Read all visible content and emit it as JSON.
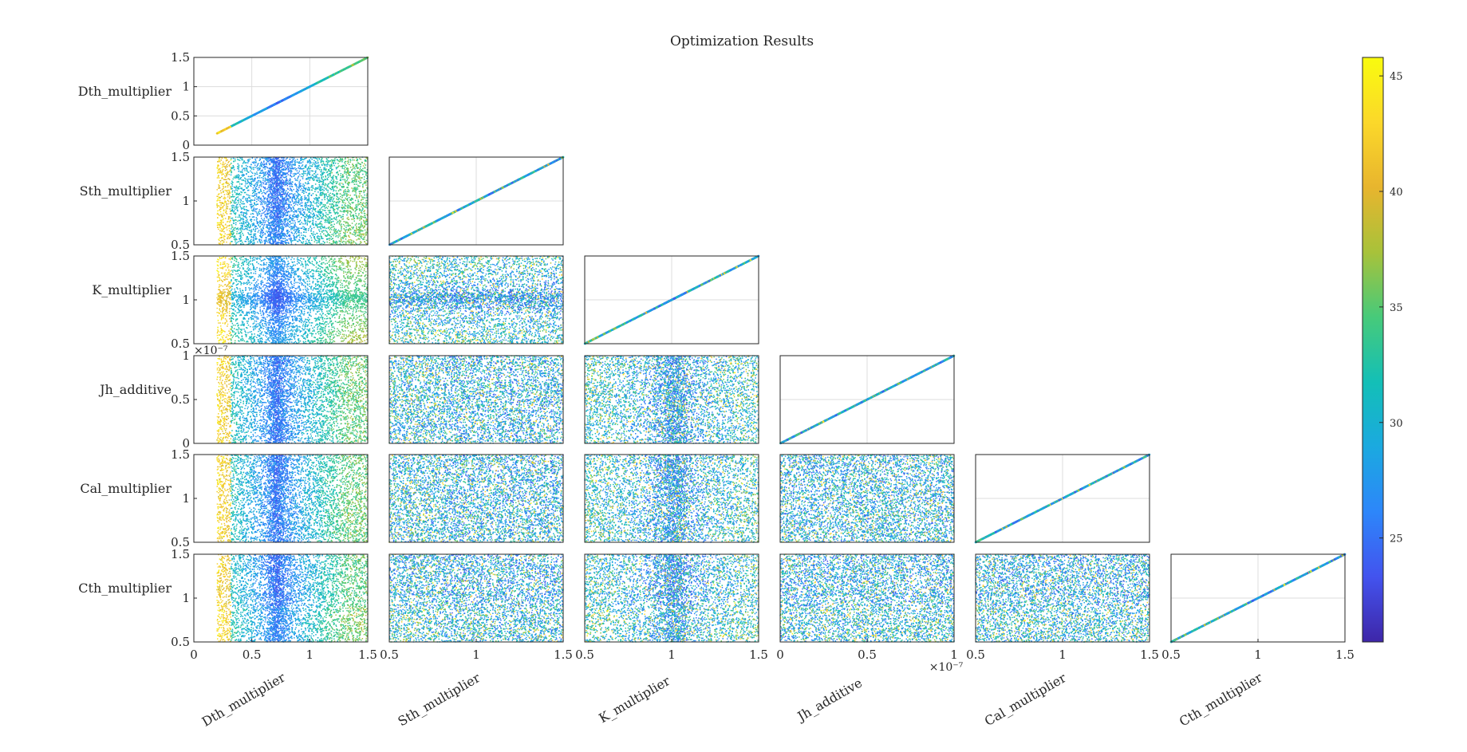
{
  "chart_data": {
    "type": "scatter",
    "layout": "lower-triangular scatter matrix",
    "title": "Optimization Results",
    "variables": [
      {
        "name": "Dth_multiplier",
        "range": [
          0,
          1.5
        ],
        "ticks": [
          0,
          0.5,
          1,
          1.5
        ],
        "tick_labels": [
          "0",
          "0.5",
          "1",
          "1.5"
        ],
        "exponent_label": ""
      },
      {
        "name": "Sth_multiplier",
        "range": [
          0.5,
          1.5
        ],
        "ticks": [
          0.5,
          1,
          1.5
        ],
        "tick_labels": [
          "0.5",
          "1",
          "1.5"
        ],
        "exponent_label": ""
      },
      {
        "name": "K_multiplier",
        "range": [
          0.5,
          1.5
        ],
        "ticks": [
          0.5,
          1,
          1.5
        ],
        "tick_labels": [
          "0.5",
          "1",
          "1.5"
        ],
        "exponent_label": ""
      },
      {
        "name": "Jh_additive",
        "range": [
          0,
          1
        ],
        "ticks": [
          0,
          0.5,
          1
        ],
        "tick_labels": [
          "0",
          "0.5",
          "1"
        ],
        "exponent_label": "×10⁻⁷"
      },
      {
        "name": "Cal_multiplier",
        "range": [
          0.5,
          1.5
        ],
        "ticks": [
          0.5,
          1,
          1.5
        ],
        "tick_labels": [
          "0.5",
          "1",
          "1.5"
        ],
        "exponent_label": ""
      },
      {
        "name": "Cth_multiplier",
        "range": [
          0.5,
          1.5
        ],
        "ticks": [
          0.5,
          1,
          1.5
        ],
        "tick_labels": [
          "0.5",
          "1",
          "1.5"
        ],
        "exponent_label": ""
      }
    ],
    "sample_ranges": [
      [
        0.2,
        1.5
      ],
      [
        0.5,
        1.5
      ],
      [
        0.5,
        1.5
      ],
      [
        0,
        1
      ],
      [
        0.5,
        1.5
      ],
      [
        0.5,
        1.5
      ]
    ],
    "point_count_per_panel": 5000,
    "clusters": {
      "Dth_multiplier": {
        "center": 0.72,
        "spread": 0.05
      },
      "K_multiplier": {
        "center": 1.02,
        "spread": 0.05
      }
    },
    "colorbar": {
      "colormap": "parula",
      "range": [
        20.5,
        45.8
      ],
      "ticks": [
        25,
        30,
        35,
        40,
        45
      ],
      "tick_labels": [
        "25",
        "30",
        "35",
        "40",
        "45"
      ]
    },
    "colors": {
      "parula": [
        "#3e26a8",
        "#4353ee",
        "#2d86fa",
        "#1ba9e0",
        "#13bfb7",
        "#47ca7a",
        "#a8c23a",
        "#e8b52e",
        "#fbd82a",
        "#f9fb0e"
      ],
      "axis": "#262626",
      "grid": "#dcdcdc"
    },
    "grid": true,
    "top_row_exponent_label": "×10⁻⁷"
  }
}
